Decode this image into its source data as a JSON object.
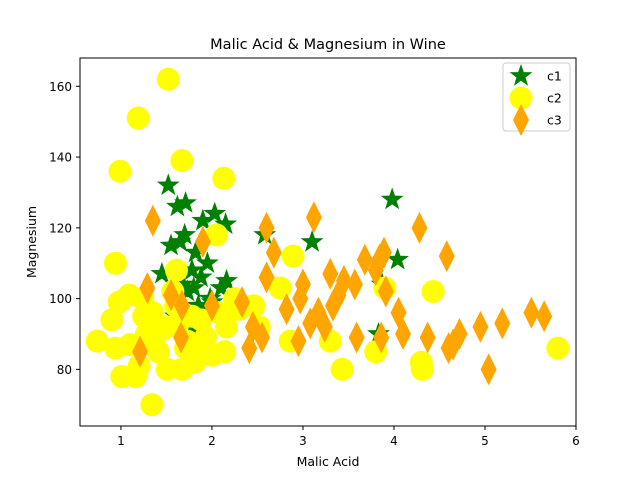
{
  "chart_data": {
    "type": "scatter",
    "title": "Malic Acid & Magnesium in Wine",
    "xlabel": "Malic Acid",
    "ylabel": "Magnesium",
    "xlim": [
      0.55,
      6.0
    ],
    "ylim": [
      64,
      168
    ],
    "xticks": [
      1,
      2,
      3,
      4,
      5,
      6
    ],
    "yticks": [
      80,
      100,
      120,
      140,
      160
    ],
    "grid": false,
    "legend_position": "top-right",
    "series": [
      {
        "name": "c1",
        "marker": "star",
        "color": "#008000",
        "points": [
          [
            1.52,
            132
          ],
          [
            1.62,
            126
          ],
          [
            1.71,
            127
          ],
          [
            1.9,
            122
          ],
          [
            1.7,
            118
          ],
          [
            1.65,
            116
          ],
          [
            1.55,
            115
          ],
          [
            1.82,
            113
          ],
          [
            2.03,
            124
          ],
          [
            2.15,
            121
          ],
          [
            1.95,
            110
          ],
          [
            1.78,
            108
          ],
          [
            1.88,
            106
          ],
          [
            1.45,
            107
          ],
          [
            1.6,
            104
          ],
          [
            1.73,
            102
          ],
          [
            1.98,
            100
          ],
          [
            2.1,
            103
          ],
          [
            2.16,
            105
          ],
          [
            1.85,
            98
          ],
          [
            1.92,
            96
          ],
          [
            1.6,
            95
          ],
          [
            1.76,
            93
          ],
          [
            1.81,
            91
          ],
          [
            2.0,
            99
          ],
          [
            2.58,
            118
          ],
          [
            3.1,
            116
          ],
          [
            3.98,
            128
          ],
          [
            4.04,
            111
          ],
          [
            3.87,
            104
          ],
          [
            3.83,
            90
          ],
          [
            1.68,
            104
          ],
          [
            1.8,
            103
          ]
        ]
      },
      {
        "name": "c2",
        "marker": "circle",
        "color": "#ffff00",
        "points": [
          [
            1.52,
            162
          ],
          [
            1.19,
            151
          ],
          [
            0.99,
            136
          ],
          [
            1.67,
            139
          ],
          [
            2.13,
            134
          ],
          [
            0.94,
            110
          ],
          [
            2.05,
            118
          ],
          [
            1.61,
            108
          ],
          [
            2.89,
            112
          ],
          [
            0.98,
            99
          ],
          [
            1.09,
            101
          ],
          [
            1.24,
            100
          ],
          [
            1.35,
            96
          ],
          [
            0.9,
            94
          ],
          [
            0.74,
            88
          ],
          [
            0.94,
            86
          ],
          [
            1.1,
            87
          ],
          [
            1.28,
            90
          ],
          [
            1.5,
            92
          ],
          [
            1.73,
            88
          ],
          [
            1.87,
            85
          ],
          [
            2.0,
            84
          ],
          [
            2.16,
            92
          ],
          [
            2.27,
            97
          ],
          [
            2.46,
            98
          ],
          [
            2.75,
            103
          ],
          [
            2.86,
            88
          ],
          [
            3.3,
            88
          ],
          [
            3.43,
            80
          ],
          [
            3.8,
            85
          ],
          [
            3.9,
            103
          ],
          [
            4.3,
            82
          ],
          [
            4.31,
            80
          ],
          [
            4.43,
            102
          ],
          [
            5.8,
            86
          ],
          [
            1.01,
            78
          ],
          [
            1.16,
            78
          ],
          [
            1.34,
            70
          ],
          [
            1.51,
            80
          ],
          [
            1.67,
            80
          ],
          [
            1.81,
            82
          ],
          [
            2.07,
            96
          ],
          [
            1.41,
            85
          ],
          [
            1.25,
            95
          ],
          [
            1.6,
            98
          ],
          [
            1.88,
            94
          ],
          [
            2.3,
            97
          ],
          [
            2.52,
            92
          ],
          [
            1.71,
            86
          ],
          [
            1.93,
            89
          ],
          [
            2.14,
            85
          ],
          [
            1.57,
            102
          ],
          [
            1.44,
            91
          ],
          [
            1.78,
            95
          ],
          [
            1.2,
            81
          ],
          [
            2.25,
            100
          ],
          [
            1.63,
            93
          ],
          [
            1.35,
            88
          ]
        ]
      },
      {
        "name": "c3",
        "marker": "diamond",
        "color": "#ffa500",
        "points": [
          [
            1.35,
            122
          ],
          [
            1.9,
            116
          ],
          [
            1.29,
            103
          ],
          [
            1.67,
            98
          ],
          [
            1.21,
            85
          ],
          [
            1.66,
            89
          ],
          [
            2.33,
            99
          ],
          [
            2.41,
            86
          ],
          [
            2.45,
            92
          ],
          [
            2.55,
            89
          ],
          [
            2.6,
            106
          ],
          [
            2.6,
            120
          ],
          [
            2.68,
            113
          ],
          [
            2.82,
            97
          ],
          [
            2.97,
            100
          ],
          [
            3.0,
            104
          ],
          [
            3.08,
            93
          ],
          [
            3.12,
            123
          ],
          [
            3.17,
            96
          ],
          [
            3.24,
            92
          ],
          [
            3.3,
            107
          ],
          [
            3.33,
            98
          ],
          [
            3.39,
            101
          ],
          [
            3.45,
            105
          ],
          [
            3.57,
            104
          ],
          [
            3.59,
            89
          ],
          [
            3.68,
            111
          ],
          [
            3.8,
            108
          ],
          [
            3.84,
            111
          ],
          [
            3.86,
            89
          ],
          [
            3.89,
            113
          ],
          [
            3.91,
            102
          ],
          [
            4.05,
            96
          ],
          [
            4.1,
            90
          ],
          [
            4.28,
            120
          ],
          [
            4.37,
            89
          ],
          [
            4.58,
            112
          ],
          [
            4.6,
            86
          ],
          [
            4.72,
            90
          ],
          [
            4.95,
            92
          ],
          [
            5.04,
            80
          ],
          [
            5.19,
            93
          ],
          [
            5.51,
            96
          ],
          [
            5.65,
            95
          ],
          [
            1.55,
            101
          ],
          [
            2.0,
            98
          ],
          [
            2.95,
            88
          ],
          [
            4.65,
            87
          ]
        ]
      }
    ]
  }
}
